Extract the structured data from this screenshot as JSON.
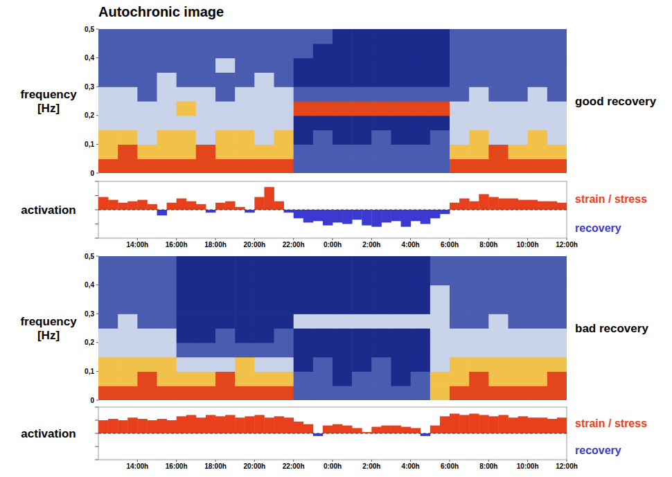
{
  "chart_data": [
    {
      "type": "heatmap",
      "title": "Autochronic image",
      "y_label": "frequency [Hz]",
      "annotation": "good recovery",
      "xlim": [
        12,
        36
      ],
      "ylim": [
        0,
        0.5
      ],
      "yticks": [
        0,
        {
          "value": 0.1,
          "label": "0,1"
        },
        {
          "value": 0.2,
          "label": "0,2"
        },
        {
          "value": 0.3,
          "label": "0,3"
        },
        {
          "value": 0.4,
          "label": "0,4"
        },
        {
          "value": 0.5,
          "label": "0,5"
        }
      ],
      "tick_labels": "y",
      "x_edges": [
        12,
        13,
        14,
        15,
        16,
        17,
        18,
        19,
        20,
        21,
        22,
        23,
        24,
        25,
        26,
        27,
        28,
        29,
        30,
        31,
        32,
        33,
        34,
        35,
        36
      ],
      "y_edges": [
        0,
        0.05,
        0.1,
        0.15,
        0.2,
        0.25,
        0.3,
        0.35,
        0.4,
        0.45,
        0.5
      ],
      "zlim": [
        0,
        4
      ],
      "colors": [
        "#1c2a8c",
        "#4a5cb0",
        "#c9d3ea",
        "#f2c14a",
        "#e2461a"
      ],
      "cells": [
        [
          4,
          4,
          4,
          4,
          4,
          4,
          4,
          4,
          4,
          4,
          1,
          1,
          1,
          1,
          1,
          1,
          1,
          1,
          4,
          4,
          4,
          4,
          4,
          4
        ],
        [
          3,
          4,
          3,
          3,
          3,
          4,
          3,
          3,
          3,
          3,
          1,
          1,
          1,
          1,
          1,
          1,
          1,
          1,
          3,
          3,
          4,
          3,
          3,
          3
        ],
        [
          3,
          3,
          2,
          3,
          3,
          2,
          3,
          3,
          2,
          3,
          0,
          1,
          0,
          0,
          1,
          0,
          0,
          1,
          2,
          3,
          2,
          2,
          3,
          2
        ],
        [
          2,
          2,
          2,
          2,
          2,
          2,
          2,
          2,
          2,
          2,
          0,
          0,
          0,
          0,
          0,
          0,
          0,
          0,
          2,
          2,
          2,
          2,
          2,
          2
        ],
        [
          2,
          2,
          2,
          2,
          3,
          2,
          2,
          2,
          2,
          2,
          4,
          4,
          4,
          4,
          4,
          4,
          4,
          4,
          2,
          2,
          2,
          2,
          2,
          2
        ],
        [
          2,
          2,
          1,
          2,
          2,
          2,
          1,
          2,
          2,
          2,
          1,
          1,
          1,
          1,
          1,
          1,
          1,
          1,
          1,
          2,
          1,
          1,
          2,
          1
        ],
        [
          1,
          1,
          1,
          2,
          1,
          1,
          1,
          1,
          2,
          1,
          0,
          0,
          0,
          0,
          0,
          0,
          0,
          0,
          1,
          1,
          1,
          1,
          1,
          1
        ],
        [
          1,
          1,
          1,
          1,
          1,
          1,
          2,
          1,
          1,
          1,
          0,
          0,
          0,
          0,
          0,
          0,
          0,
          0,
          1,
          1,
          1,
          1,
          1,
          1
        ],
        [
          1,
          1,
          1,
          1,
          1,
          1,
          1,
          1,
          1,
          1,
          1,
          0,
          0,
          0,
          0,
          0,
          0,
          0,
          1,
          1,
          1,
          1,
          1,
          1
        ],
        [
          1,
          1,
          1,
          1,
          1,
          1,
          1,
          1,
          1,
          1,
          1,
          1,
          0,
          0,
          0,
          0,
          0,
          0,
          1,
          1,
          1,
          1,
          1,
          1
        ]
      ]
    },
    {
      "type": "bar",
      "y_label": "activation",
      "annotations": [
        {
          "text": "strain / stress",
          "color": "#e8401c"
        },
        {
          "text": "recovery",
          "color": "#3a3ad0"
        }
      ],
      "xlim": [
        12,
        36
      ],
      "ylim": [
        -1,
        1
      ],
      "xticks": [
        {
          "value": 14,
          "label": "14:00h"
        },
        {
          "value": 16,
          "label": "16:00h"
        },
        {
          "value": 18,
          "label": "18:00h"
        },
        {
          "value": 20,
          "label": "20:00h"
        },
        {
          "value": 22,
          "label": "22:00h"
        },
        {
          "value": 24,
          "label": "0:00h"
        },
        {
          "value": 26,
          "label": "2:00h"
        },
        {
          "value": 28,
          "label": "4:00h"
        },
        {
          "value": 30,
          "label": "6:00h"
        },
        {
          "value": 32,
          "label": "8:00h"
        },
        {
          "value": 34,
          "label": "10:00h"
        },
        {
          "value": 36,
          "label": "12:00h"
        }
      ],
      "yticks": [
        -1,
        -0.5,
        0,
        0.5,
        1
      ],
      "tick_labels": "x",
      "x": [
        12,
        12.5,
        13,
        13.5,
        14,
        14.5,
        15,
        15.5,
        16,
        16.5,
        17,
        17.5,
        18,
        18.5,
        19,
        19.5,
        20,
        20.5,
        21,
        21.5,
        22,
        22.5,
        23,
        23.5,
        24,
        24.5,
        25,
        25.5,
        26,
        26.5,
        27,
        27.5,
        28,
        28.5,
        29,
        29.5,
        30,
        30.5,
        31,
        31.5,
        32,
        32.5,
        33,
        33.5,
        34,
        34.5,
        35,
        35.5
      ],
      "values": [
        0.45,
        0.35,
        0.25,
        0.3,
        0.35,
        0.2,
        -0.2,
        0.25,
        0.4,
        0.3,
        0.2,
        -0.1,
        0.25,
        0.3,
        0.1,
        -0.1,
        0.45,
        0.8,
        0.3,
        -0.1,
        -0.3,
        -0.45,
        -0.4,
        -0.55,
        -0.45,
        -0.5,
        -0.35,
        -0.55,
        -0.6,
        -0.45,
        -0.4,
        -0.6,
        -0.4,
        -0.5,
        -0.3,
        -0.15,
        0.25,
        0.4,
        0.3,
        0.55,
        0.45,
        0.4,
        0.4,
        0.35,
        0.35,
        0.3,
        0.3,
        0.25
      ]
    },
    {
      "type": "heatmap",
      "y_label": "frequency [Hz]",
      "annotation": "bad recovery",
      "xlim": [
        12,
        36
      ],
      "ylim": [
        0,
        0.5
      ],
      "yticks": [
        0,
        {
          "value": 0.1,
          "label": "0,1"
        },
        {
          "value": 0.2,
          "label": "0,2"
        },
        {
          "value": 0.3,
          "label": "0,3"
        },
        {
          "value": 0.4,
          "label": "0,4"
        },
        {
          "value": 0.5,
          "label": "0,5"
        }
      ],
      "tick_labels": "y",
      "x_edges": [
        12,
        13,
        14,
        15,
        16,
        17,
        18,
        19,
        20,
        21,
        22,
        23,
        24,
        25,
        26,
        27,
        28,
        29,
        30,
        31,
        32,
        33,
        34,
        35,
        36
      ],
      "y_edges": [
        0,
        0.05,
        0.1,
        0.15,
        0.2,
        0.25,
        0.3,
        0.35,
        0.4,
        0.45,
        0.5
      ],
      "zlim": [
        0,
        4
      ],
      "colors": [
        "#1c2a8c",
        "#4a5cb0",
        "#c9d3ea",
        "#f2c14a",
        "#e2461a"
      ],
      "cells": [
        [
          4,
          4,
          4,
          4,
          4,
          4,
          4,
          4,
          4,
          4,
          1,
          1,
          1,
          1,
          1,
          1,
          1,
          3,
          4,
          4,
          4,
          4,
          4,
          4
        ],
        [
          3,
          3,
          4,
          3,
          3,
          3,
          4,
          3,
          3,
          3,
          1,
          1,
          0,
          1,
          1,
          0,
          1,
          3,
          3,
          4,
          3,
          3,
          3,
          4
        ],
        [
          3,
          3,
          3,
          3,
          2,
          2,
          2,
          3,
          2,
          2,
          0,
          1,
          0,
          0,
          1,
          0,
          0,
          2,
          3,
          3,
          3,
          3,
          3,
          3
        ],
        [
          2,
          2,
          2,
          2,
          1,
          1,
          1,
          1,
          1,
          1,
          0,
          0,
          0,
          0,
          0,
          0,
          0,
          2,
          2,
          2,
          2,
          2,
          2,
          2
        ],
        [
          2,
          2,
          2,
          2,
          0,
          0,
          1,
          0,
          0,
          1,
          0,
          0,
          0,
          0,
          0,
          0,
          0,
          2,
          2,
          2,
          2,
          2,
          2,
          2
        ],
        [
          1,
          2,
          1,
          1,
          0,
          0,
          0,
          0,
          0,
          0,
          2,
          2,
          2,
          2,
          2,
          2,
          2,
          2,
          1,
          1,
          2,
          1,
          1,
          1
        ],
        [
          1,
          1,
          1,
          1,
          0,
          0,
          0,
          0,
          0,
          0,
          0,
          0,
          0,
          0,
          0,
          0,
          0,
          2,
          1,
          1,
          1,
          1,
          1,
          1
        ],
        [
          1,
          1,
          1,
          1,
          0,
          0,
          0,
          0,
          0,
          0,
          0,
          0,
          0,
          0,
          0,
          0,
          0,
          2,
          1,
          1,
          1,
          1,
          1,
          1
        ],
        [
          1,
          1,
          1,
          1,
          0,
          0,
          0,
          0,
          0,
          0,
          0,
          0,
          0,
          0,
          0,
          0,
          0,
          1,
          1,
          1,
          1,
          1,
          1,
          1
        ],
        [
          1,
          1,
          1,
          1,
          0,
          0,
          0,
          0,
          0,
          0,
          0,
          0,
          0,
          0,
          0,
          0,
          0,
          1,
          1,
          1,
          1,
          1,
          1,
          1
        ]
      ]
    },
    {
      "type": "bar",
      "y_label": "activation",
      "annotations": [
        {
          "text": "strain / stress",
          "color": "#e8401c"
        },
        {
          "text": "recovery",
          "color": "#3a3ad0"
        }
      ],
      "xlim": [
        12,
        36
      ],
      "ylim": [
        -1,
        1
      ],
      "xticks": [
        {
          "value": 14,
          "label": "14:00h"
        },
        {
          "value": 16,
          "label": "16:00h"
        },
        {
          "value": 18,
          "label": "18:00h"
        },
        {
          "value": 20,
          "label": "20:00h"
        },
        {
          "value": 22,
          "label": "22:00h"
        },
        {
          "value": 24,
          "label": "0:00h"
        },
        {
          "value": 26,
          "label": "2:00h"
        },
        {
          "value": 28,
          "label": "4:00h"
        },
        {
          "value": 30,
          "label": "6:00h"
        },
        {
          "value": 32,
          "label": "8:00h"
        },
        {
          "value": 34,
          "label": "10:00h"
        },
        {
          "value": 36,
          "label": "12:00h"
        }
      ],
      "yticks": [
        -1,
        -0.5,
        0,
        0.5,
        1
      ],
      "tick_labels": "x",
      "x": [
        12,
        12.5,
        13,
        13.5,
        14,
        14.5,
        15,
        15.5,
        16,
        16.5,
        17,
        17.5,
        18,
        18.5,
        19,
        19.5,
        20,
        20.5,
        21,
        21.5,
        22,
        22.5,
        23,
        23.5,
        24,
        24.5,
        25,
        25.5,
        26,
        26.5,
        27,
        27.5,
        28,
        28.5,
        29,
        29.5,
        30,
        30.5,
        31,
        31.5,
        32,
        32.5,
        33,
        33.5,
        34,
        34.5,
        35,
        35.5
      ],
      "values": [
        0.5,
        0.55,
        0.5,
        0.6,
        0.55,
        0.5,
        0.55,
        0.5,
        0.65,
        0.7,
        0.6,
        0.7,
        0.65,
        0.7,
        0.6,
        0.65,
        0.7,
        0.6,
        0.65,
        0.6,
        0.45,
        0.35,
        -0.1,
        0.3,
        0.35,
        0.3,
        0.2,
        0.05,
        0.25,
        0.3,
        0.3,
        0.25,
        0.2,
        -0.1,
        0.3,
        0.65,
        0.75,
        0.7,
        0.75,
        0.7,
        0.65,
        0.7,
        0.6,
        0.65,
        0.6,
        0.6,
        0.55,
        0.6
      ]
    }
  ]
}
